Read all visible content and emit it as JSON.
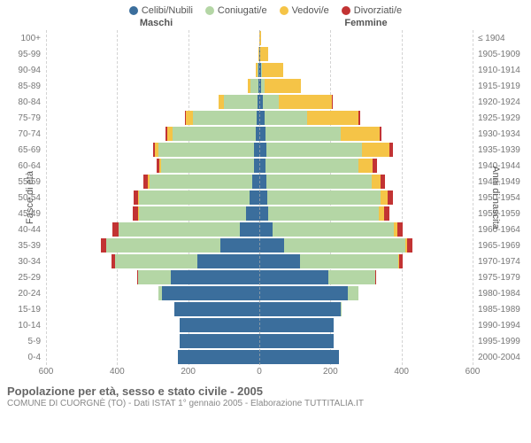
{
  "chart": {
    "type": "population-pyramid",
    "legend": [
      {
        "label": "Celibi/Nubili",
        "color": "#3b6e9c"
      },
      {
        "label": "Coniugati/e",
        "color": "#b4d6a5"
      },
      {
        "label": "Vedovi/e",
        "color": "#f5c447"
      },
      {
        "label": "Divorziati/e",
        "color": "#c23333"
      }
    ],
    "header_male": "Maschi",
    "header_female": "Femmine",
    "y_title_left": "Fasce di età",
    "y_title_right": "Anni di nascita",
    "x_max": 600,
    "x_ticks": [
      600,
      400,
      200,
      0,
      200,
      400,
      600
    ],
    "x_ticks_male": [
      600,
      400,
      200,
      0
    ],
    "x_ticks_female": [
      200,
      400,
      600
    ],
    "gridline_color": "rgba(170,170,170,0.5)",
    "background": "#ffffff",
    "tick_fontsize": 10,
    "label_fontsize": 11,
    "age_labels": [
      "100+",
      "95-99",
      "90-94",
      "85-89",
      "80-84",
      "75-79",
      "70-74",
      "65-69",
      "60-64",
      "55-59",
      "50-54",
      "45-49",
      "40-44",
      "35-39",
      "30-34",
      "25-29",
      "20-24",
      "15-19",
      "10-14",
      "5-9",
      "0-4"
    ],
    "birth_labels": [
      "≤ 1904",
      "1905-1909",
      "1910-1914",
      "1915-1919",
      "1920-1924",
      "1925-1929",
      "1930-1934",
      "1935-1939",
      "1940-1944",
      "1945-1949",
      "1950-1954",
      "1955-1959",
      "1960-1964",
      "1965-1969",
      "1970-1974",
      "1975-1979",
      "1980-1984",
      "1985-1989",
      "1990-1994",
      "1995-1999",
      "2000-2004"
    ],
    "rows": [
      {
        "m": {
          "c": 0,
          "co": 0,
          "v": 0,
          "d": 0
        },
        "f": {
          "c": 1,
          "co": 0,
          "v": 4,
          "d": 0
        }
      },
      {
        "m": {
          "c": 1,
          "co": 0,
          "v": 2,
          "d": 0
        },
        "f": {
          "c": 2,
          "co": 0,
          "v": 22,
          "d": 0
        }
      },
      {
        "m": {
          "c": 2,
          "co": 4,
          "v": 5,
          "d": 0
        },
        "f": {
          "c": 4,
          "co": 3,
          "v": 60,
          "d": 0
        }
      },
      {
        "m": {
          "c": 3,
          "co": 22,
          "v": 8,
          "d": 0
        },
        "f": {
          "c": 6,
          "co": 10,
          "v": 100,
          "d": 0
        }
      },
      {
        "m": {
          "c": 5,
          "co": 95,
          "v": 15,
          "d": 0
        },
        "f": {
          "c": 10,
          "co": 45,
          "v": 150,
          "d": 2
        }
      },
      {
        "m": {
          "c": 8,
          "co": 180,
          "v": 18,
          "d": 2
        },
        "f": {
          "c": 14,
          "co": 120,
          "v": 145,
          "d": 4
        }
      },
      {
        "m": {
          "c": 10,
          "co": 235,
          "v": 15,
          "d": 4
        },
        "f": {
          "c": 18,
          "co": 210,
          "v": 110,
          "d": 6
        }
      },
      {
        "m": {
          "c": 14,
          "co": 270,
          "v": 10,
          "d": 6
        },
        "f": {
          "c": 20,
          "co": 270,
          "v": 75,
          "d": 10
        }
      },
      {
        "m": {
          "c": 16,
          "co": 260,
          "v": 6,
          "d": 8
        },
        "f": {
          "c": 18,
          "co": 260,
          "v": 40,
          "d": 12
        }
      },
      {
        "m": {
          "c": 20,
          "co": 290,
          "v": 5,
          "d": 12
        },
        "f": {
          "c": 20,
          "co": 295,
          "v": 25,
          "d": 14
        }
      },
      {
        "m": {
          "c": 28,
          "co": 310,
          "v": 4,
          "d": 12
        },
        "f": {
          "c": 22,
          "co": 320,
          "v": 18,
          "d": 16
        }
      },
      {
        "m": {
          "c": 38,
          "co": 300,
          "v": 3,
          "d": 14
        },
        "f": {
          "c": 26,
          "co": 310,
          "v": 14,
          "d": 16
        }
      },
      {
        "m": {
          "c": 55,
          "co": 340,
          "v": 2,
          "d": 16
        },
        "f": {
          "c": 38,
          "co": 340,
          "v": 10,
          "d": 16
        }
      },
      {
        "m": {
          "c": 110,
          "co": 320,
          "v": 1,
          "d": 14
        },
        "f": {
          "c": 70,
          "co": 340,
          "v": 6,
          "d": 14
        }
      },
      {
        "m": {
          "c": 175,
          "co": 230,
          "v": 0,
          "d": 10
        },
        "f": {
          "c": 115,
          "co": 275,
          "v": 3,
          "d": 10
        }
      },
      {
        "m": {
          "c": 250,
          "co": 90,
          "v": 0,
          "d": 3
        },
        "f": {
          "c": 195,
          "co": 130,
          "v": 1,
          "d": 3
        }
      },
      {
        "m": {
          "c": 275,
          "co": 10,
          "v": 0,
          "d": 0
        },
        "f": {
          "c": 250,
          "co": 28,
          "v": 0,
          "d": 0
        }
      },
      {
        "m": {
          "c": 240,
          "co": 0,
          "v": 0,
          "d": 0
        },
        "f": {
          "c": 230,
          "co": 2,
          "v": 0,
          "d": 0
        }
      },
      {
        "m": {
          "c": 225,
          "co": 0,
          "v": 0,
          "d": 0
        },
        "f": {
          "c": 210,
          "co": 0,
          "v": 0,
          "d": 0
        }
      },
      {
        "m": {
          "c": 225,
          "co": 0,
          "v": 0,
          "d": 0
        },
        "f": {
          "c": 210,
          "co": 0,
          "v": 0,
          "d": 0
        }
      },
      {
        "m": {
          "c": 230,
          "co": 0,
          "v": 0,
          "d": 0
        },
        "f": {
          "c": 225,
          "co": 0,
          "v": 0,
          "d": 0
        }
      }
    ]
  },
  "footer": {
    "title": "Popolazione per età, sesso e stato civile - 2005",
    "subtitle": "COMUNE DI CUORGNÈ (TO) - Dati ISTAT 1° gennaio 2005 - Elaborazione TUTTITALIA.IT"
  }
}
